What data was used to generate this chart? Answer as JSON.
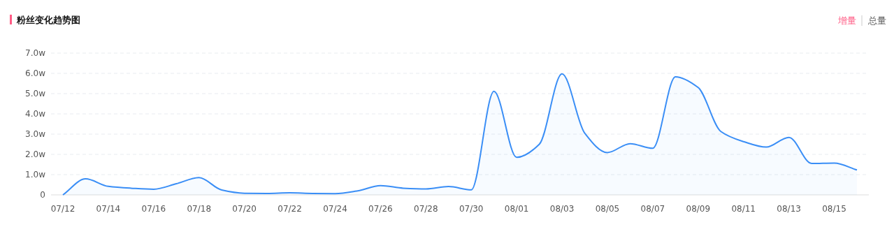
{
  "chart_data": {
    "type": "area",
    "title": "粉丝变化趋势图",
    "annotations": [
      "增量",
      "总量"
    ],
    "categories": [
      "07/12",
      null,
      "07/14",
      null,
      "07/16",
      null,
      "07/18",
      null,
      "07/20",
      null,
      "07/22",
      null,
      "07/24",
      null,
      "07/26",
      null,
      "07/28",
      null,
      "07/30",
      null,
      "08/01",
      null,
      "08/03",
      null,
      "08/05",
      null,
      "08/07",
      null,
      "08/09",
      null,
      "08/11",
      null,
      "08/13",
      null,
      "08/15",
      null
    ],
    "series": [
      {
        "color": "#3a8ef6",
        "values": [
          0,
          0.79,
          0.42,
          0.33,
          0.28,
          0.55,
          0.85,
          0.24,
          0.08,
          0.07,
          0.1,
          0.07,
          0.06,
          0.2,
          0.46,
          0.33,
          0.29,
          0.41,
          0.25,
          5.11,
          1.85,
          2.5,
          5.97,
          3.05,
          2.09,
          2.53,
          2.3,
          5.83,
          5.3,
          3.13,
          2.63,
          2.36,
          2.84,
          1.55,
          1.57,
          1.23
        ]
      }
    ],
    "ylim": [
      0,
      7
    ],
    "yticks": [
      0,
      {
        "value": 1,
        "label": "1.0w"
      },
      {
        "value": 2,
        "label": "2.0w"
      },
      {
        "value": 3,
        "label": "3.0w"
      },
      {
        "value": 4,
        "label": "4.0w"
      },
      {
        "value": 5,
        "label": "5.0w"
      },
      {
        "value": 6,
        "label": "6.0w"
      },
      {
        "value": 7,
        "label": "7.0w"
      }
    ],
    "grid": "y"
  }
}
